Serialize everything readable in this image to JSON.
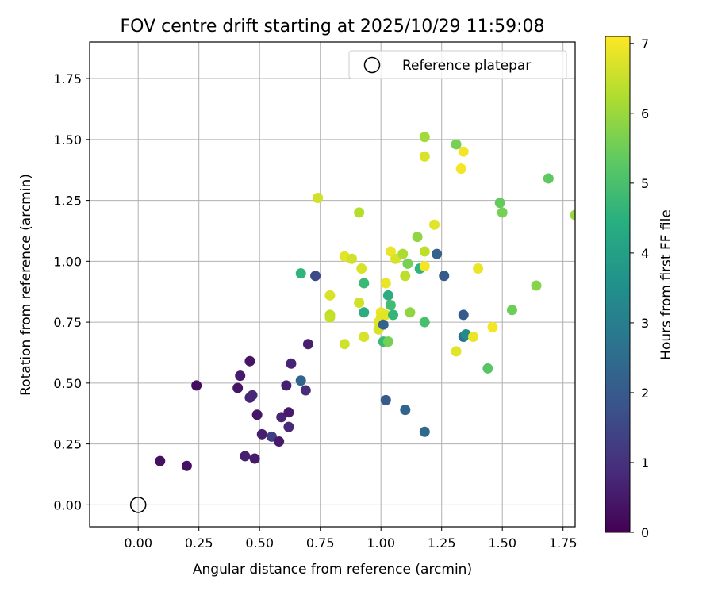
{
  "chart_data": {
    "type": "scatter",
    "title": "FOV centre drift starting at 2025/10/29 11:59:08",
    "xlabel": "Angular distance from reference (arcmin)",
    "ylabel": "Rotation from reference (arcmin)",
    "xlim": [
      -0.2,
      1.8
    ],
    "ylim": [
      -0.09,
      1.9
    ],
    "grid": true,
    "x_ticks": [
      "0.00",
      "0.25",
      "0.50",
      "0.75",
      "1.00",
      "1.25",
      "1.50",
      "1.75"
    ],
    "y_ticks": [
      "0.00",
      "0.25",
      "0.50",
      "0.75",
      "1.00",
      "1.25",
      "1.50",
      "1.75"
    ],
    "legend": {
      "position": "top-right",
      "label": "Reference platepar"
    },
    "reference_point": {
      "x": 0.0,
      "y": 0.0
    },
    "colorbar": {
      "label": "Hours from first FF file",
      "min": 0,
      "max": 7.1,
      "ticks": [
        "0",
        "1",
        "2",
        "3",
        "4",
        "5",
        "6",
        "7"
      ],
      "colormap": "viridis"
    },
    "points": [
      {
        "x": 0.09,
        "y": 0.18,
        "h": 0.3
      },
      {
        "x": 0.2,
        "y": 0.16,
        "h": 0.3
      },
      {
        "x": 0.24,
        "y": 0.49,
        "h": 0.2
      },
      {
        "x": 0.41,
        "y": 0.48,
        "h": 0.4
      },
      {
        "x": 0.42,
        "y": 0.53,
        "h": 0.5
      },
      {
        "x": 0.46,
        "y": 0.59,
        "h": 0.4
      },
      {
        "x": 0.46,
        "y": 0.44,
        "h": 0.7
      },
      {
        "x": 0.47,
        "y": 0.45,
        "h": 0.8
      },
      {
        "x": 0.44,
        "y": 0.2,
        "h": 0.6
      },
      {
        "x": 0.48,
        "y": 0.19,
        "h": 0.5
      },
      {
        "x": 0.49,
        "y": 0.37,
        "h": 0.4
      },
      {
        "x": 0.51,
        "y": 0.29,
        "h": 0.6
      },
      {
        "x": 0.55,
        "y": 0.28,
        "h": 1.3
      },
      {
        "x": 0.58,
        "y": 0.26,
        "h": 0.5
      },
      {
        "x": 0.59,
        "y": 0.36,
        "h": 0.7
      },
      {
        "x": 0.61,
        "y": 0.49,
        "h": 0.6
      },
      {
        "x": 0.62,
        "y": 0.38,
        "h": 0.5
      },
      {
        "x": 0.62,
        "y": 0.32,
        "h": 0.8
      },
      {
        "x": 0.63,
        "y": 0.58,
        "h": 0.7
      },
      {
        "x": 0.67,
        "y": 0.51,
        "h": 2.3
      },
      {
        "x": 0.69,
        "y": 0.47,
        "h": 0.9
      },
      {
        "x": 0.7,
        "y": 0.66,
        "h": 0.6
      },
      {
        "x": 0.67,
        "y": 0.95,
        "h": 4.6
      },
      {
        "x": 0.73,
        "y": 0.94,
        "h": 1.6
      },
      {
        "x": 0.74,
        "y": 1.26,
        "h": 6.6
      },
      {
        "x": 0.79,
        "y": 0.86,
        "h": 6.7
      },
      {
        "x": 0.79,
        "y": 0.78,
        "h": 6.4
      },
      {
        "x": 0.79,
        "y": 0.77,
        "h": 6.5
      },
      {
        "x": 0.85,
        "y": 1.02,
        "h": 6.8
      },
      {
        "x": 0.85,
        "y": 0.66,
        "h": 6.6
      },
      {
        "x": 0.88,
        "y": 1.01,
        "h": 6.6
      },
      {
        "x": 0.91,
        "y": 1.2,
        "h": 6.3
      },
      {
        "x": 0.92,
        "y": 0.97,
        "h": 6.7
      },
      {
        "x": 0.93,
        "y": 0.91,
        "h": 4.8
      },
      {
        "x": 0.93,
        "y": 0.79,
        "h": 4.4
      },
      {
        "x": 0.91,
        "y": 0.83,
        "h": 6.6
      },
      {
        "x": 0.93,
        "y": 0.69,
        "h": 6.7
      },
      {
        "x": 0.99,
        "y": 0.75,
        "h": 6.8
      },
      {
        "x": 0.99,
        "y": 0.72,
        "h": 6.7
      },
      {
        "x": 1.0,
        "y": 0.79,
        "h": 6.9
      },
      {
        "x": 1.0,
        "y": 0.77,
        "h": 6.8
      },
      {
        "x": 1.01,
        "y": 0.74,
        "h": 2.2
      },
      {
        "x": 1.01,
        "y": 0.67,
        "h": 4.8
      },
      {
        "x": 1.02,
        "y": 0.91,
        "h": 6.9
      },
      {
        "x": 1.03,
        "y": 0.67,
        "h": 5.6
      },
      {
        "x": 1.02,
        "y": 0.78,
        "h": 6.8
      },
      {
        "x": 1.03,
        "y": 0.86,
        "h": 4.4
      },
      {
        "x": 1.04,
        "y": 0.82,
        "h": 4.9
      },
      {
        "x": 1.04,
        "y": 1.04,
        "h": 6.9
      },
      {
        "x": 1.05,
        "y": 0.78,
        "h": 4.7
      },
      {
        "x": 1.06,
        "y": 1.01,
        "h": 6.7
      },
      {
        "x": 1.02,
        "y": 0.43,
        "h": 2.0
      },
      {
        "x": 1.09,
        "y": 1.03,
        "h": 6.2
      },
      {
        "x": 1.1,
        "y": 0.94,
        "h": 6.4
      },
      {
        "x": 1.1,
        "y": 0.39,
        "h": 2.3
      },
      {
        "x": 1.11,
        "y": 0.99,
        "h": 5.6
      },
      {
        "x": 1.12,
        "y": 0.79,
        "h": 5.9
      },
      {
        "x": 1.15,
        "y": 1.1,
        "h": 5.9
      },
      {
        "x": 1.16,
        "y": 0.97,
        "h": 4.6
      },
      {
        "x": 1.18,
        "y": 0.98,
        "h": 7.0
      },
      {
        "x": 1.18,
        "y": 1.04,
        "h": 6.4
      },
      {
        "x": 1.18,
        "y": 1.51,
        "h": 6.1
      },
      {
        "x": 1.18,
        "y": 1.43,
        "h": 6.7
      },
      {
        "x": 1.18,
        "y": 0.75,
        "h": 5.0
      },
      {
        "x": 1.18,
        "y": 0.3,
        "h": 2.4
      },
      {
        "x": 1.22,
        "y": 1.15,
        "h": 6.8
      },
      {
        "x": 1.23,
        "y": 1.03,
        "h": 2.2
      },
      {
        "x": 1.26,
        "y": 0.94,
        "h": 2.0
      },
      {
        "x": 1.31,
        "y": 1.48,
        "h": 5.6
      },
      {
        "x": 1.33,
        "y": 1.38,
        "h": 7.0
      },
      {
        "x": 1.34,
        "y": 1.45,
        "h": 7.0
      },
      {
        "x": 1.31,
        "y": 0.63,
        "h": 6.8
      },
      {
        "x": 1.34,
        "y": 0.78,
        "h": 2.0
      },
      {
        "x": 1.34,
        "y": 0.69,
        "h": 2.6
      },
      {
        "x": 1.35,
        "y": 0.7,
        "h": 3.4
      },
      {
        "x": 1.38,
        "y": 0.69,
        "h": 6.9
      },
      {
        "x": 1.4,
        "y": 0.97,
        "h": 6.9
      },
      {
        "x": 1.44,
        "y": 0.56,
        "h": 5.2
      },
      {
        "x": 1.46,
        "y": 0.73,
        "h": 7.0
      },
      {
        "x": 1.49,
        "y": 1.24,
        "h": 5.4
      },
      {
        "x": 1.5,
        "y": 1.2,
        "h": 5.6
      },
      {
        "x": 1.54,
        "y": 0.8,
        "h": 5.5
      },
      {
        "x": 1.64,
        "y": 0.9,
        "h": 5.8
      },
      {
        "x": 1.69,
        "y": 1.34,
        "h": 5.3
      },
      {
        "x": 1.8,
        "y": 1.19,
        "h": 6.0
      }
    ]
  }
}
